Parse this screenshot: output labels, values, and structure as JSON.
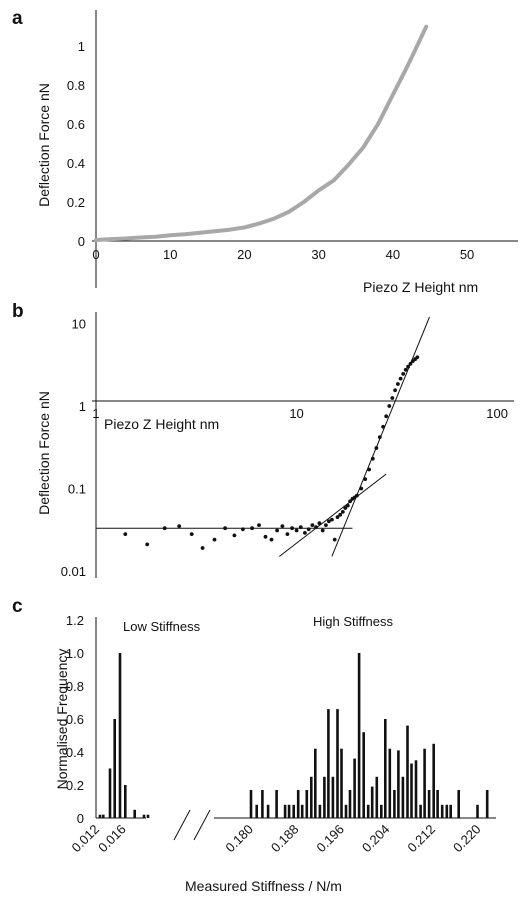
{
  "panels": [
    {
      "letter": "a",
      "ylabel": "Deflection Force nN",
      "xlabel": "Piezo Z Height nm"
    },
    {
      "letter": "b",
      "ylabel": "Deflection Force nN",
      "xlabel": "Piezo Z Height nm"
    },
    {
      "letter": "c",
      "ylabel": "Normalised Frequency",
      "xlabel": "Measured Stiffness / N/m",
      "annotations": [
        "Low Stiffness",
        "High Stiffness"
      ]
    }
  ],
  "colors": {
    "curve_a": "#a8a8a8",
    "marks": "#111111"
  },
  "chart_data": [
    {
      "type": "line",
      "ylabel": "Deflection Force nN",
      "xlabel": "Piezo Z Height nm",
      "xlim": [
        0,
        57
      ],
      "ylim": [
        0,
        1.15
      ],
      "xticks": [
        0,
        10,
        20,
        30,
        40,
        50
      ],
      "yticks": [
        0,
        0.2,
        0.4,
        0.6,
        0.8,
        1
      ],
      "xtick_labels": [
        "0",
        "10",
        "20",
        "30",
        "40",
        "50"
      ],
      "ytick_labels": [
        "0",
        "0.2",
        "0.4",
        "0.6",
        "0.8",
        "1"
      ],
      "series": [
        {
          "x": [
            0,
            2,
            4,
            6,
            8,
            10,
            12,
            14,
            16,
            18,
            20,
            22,
            24,
            26,
            28,
            30,
            32,
            34,
            36,
            38,
            40,
            42,
            44.5
          ],
          "y": [
            0.005,
            0.01,
            0.013,
            0.018,
            0.022,
            0.03,
            0.035,
            0.042,
            0.05,
            0.058,
            0.07,
            0.09,
            0.115,
            0.15,
            0.2,
            0.26,
            0.31,
            0.39,
            0.48,
            0.6,
            0.75,
            0.9,
            1.1
          ]
        }
      ]
    },
    {
      "type": "scatter",
      "scale": "log-log",
      "ylabel": "Deflection Force nN",
      "xlabel": "Piezo Z Height nm",
      "xlim": [
        1,
        120
      ],
      "ylim": [
        0.01,
        12
      ],
      "xtick_labels": [
        "1",
        "10",
        "100"
      ],
      "ytick_labels": [
        "10",
        "1",
        "0.1",
        "0.01"
      ],
      "xticks": [
        1,
        10,
        100
      ],
      "yticks": [
        10,
        1,
        0.1,
        0.01
      ],
      "points": {
        "x": [
          1.4,
          1.8,
          2.2,
          2.6,
          3.0,
          3.4,
          3.9,
          4.4,
          4.9,
          5.4,
          6.0,
          6.5,
          7.0,
          7.5,
          8.0,
          8.5,
          9.0,
          9.5,
          10.0,
          10.5,
          11.0,
          11.5,
          12.0,
          12.5,
          13.0,
          13.5,
          14.0,
          14.5,
          15.0,
          15.5,
          16.0,
          16.5,
          17.0,
          17.5,
          18.0,
          18.5,
          19.0,
          19.5,
          20.0,
          21.0,
          22.0,
          23.0,
          24.0,
          25.0,
          26.0,
          27.0,
          28.0,
          29.0,
          30.0,
          31.0,
          32.0,
          33.0,
          34.0,
          35.0,
          36.0,
          37.0,
          38.0,
          39.0,
          40.0
        ],
        "y": [
          0.028,
          0.021,
          0.033,
          0.035,
          0.028,
          0.019,
          0.024,
          0.033,
          0.027,
          0.032,
          0.033,
          0.036,
          0.026,
          0.024,
          0.031,
          0.035,
          0.028,
          0.033,
          0.031,
          0.034,
          0.029,
          0.032,
          0.036,
          0.034,
          0.038,
          0.031,
          0.036,
          0.04,
          0.042,
          0.024,
          0.045,
          0.048,
          0.052,
          0.058,
          0.062,
          0.07,
          0.075,
          0.078,
          0.082,
          0.1,
          0.13,
          0.17,
          0.23,
          0.31,
          0.42,
          0.56,
          0.75,
          1.0,
          1.25,
          1.55,
          1.85,
          2.15,
          2.45,
          2.75,
          3.0,
          3.25,
          3.5,
          3.7,
          3.9
        ]
      },
      "fit_lines": [
        {
          "name": "baseline",
          "x": [
            1,
            19
          ],
          "y": [
            0.033,
            0.033
          ]
        },
        {
          "name": "transition",
          "x": [
            8.2,
            28
          ],
          "y": [
            0.015,
            0.15
          ]
        },
        {
          "name": "steep",
          "x": [
            15,
            46
          ],
          "y": [
            0.015,
            12
          ]
        }
      ]
    },
    {
      "type": "bar",
      "ylabel": "Normalised Frequency",
      "xlabel": "Measured Stiffness / N/m",
      "ylim": [
        0,
        1.2
      ],
      "yticks": [
        0,
        0.2,
        0.4,
        0.6,
        0.8,
        1.0,
        1.2
      ],
      "ytick_labels": [
        "0",
        "0.2",
        "0.4",
        "0.6",
        "0.8",
        "1.0",
        "1.2"
      ],
      "broken_x_axis": true,
      "xtick_labels": [
        "0.012",
        "0.016",
        "0.180",
        "0.188",
        "0.196",
        "0.204",
        "0.212",
        "0.220"
      ],
      "xticks": [
        0.012,
        0.016,
        0.18,
        0.188,
        0.196,
        0.204,
        0.212,
        0.22
      ],
      "segments": [
        {
          "name": "Low Stiffness",
          "x": [
            0.012,
            0.0125,
            0.0135,
            0.0142,
            0.015,
            0.0158,
            0.0172,
            0.0186,
            0.0192
          ],
          "values": [
            0.02,
            0.02,
            0.3,
            0.6,
            1.0,
            0.2,
            0.05,
            0.02,
            0.02
          ]
        },
        {
          "name": "High Stiffness",
          "x": [
            0.1795,
            0.1805,
            0.1815,
            0.1825,
            0.184,
            0.1855,
            0.1862,
            0.187,
            0.1878,
            0.1885,
            0.1893,
            0.1901,
            0.1908,
            0.1916,
            0.1924,
            0.1931,
            0.1939,
            0.1947,
            0.1954,
            0.1962,
            0.1969,
            0.1977,
            0.1985,
            0.1993,
            0.2001,
            0.2008,
            0.2016,
            0.2024,
            0.2031,
            0.2039,
            0.2047,
            0.2054,
            0.2062,
            0.207,
            0.2077,
            0.2085,
            0.2093,
            0.21,
            0.2108,
            0.2116,
            0.2123,
            0.2131,
            0.2139,
            0.2146,
            0.216,
            0.2193,
            0.221
          ],
          "values": [
            0.17,
            0.08,
            0.17,
            0.08,
            0.17,
            0.08,
            0.08,
            0.08,
            0.17,
            0.08,
            0.17,
            0.25,
            0.42,
            0.08,
            0.25,
            0.66,
            0.25,
            0.66,
            0.42,
            0.08,
            0.17,
            0.36,
            1.0,
            0.52,
            0.08,
            0.19,
            0.25,
            0.08,
            0.6,
            0.42,
            0.17,
            0.41,
            0.25,
            0.56,
            0.33,
            0.35,
            0.08,
            0.42,
            0.17,
            0.45,
            0.17,
            0.08,
            0.08,
            0.08,
            0.17,
            0.08,
            0.17
          ]
        }
      ]
    }
  ]
}
